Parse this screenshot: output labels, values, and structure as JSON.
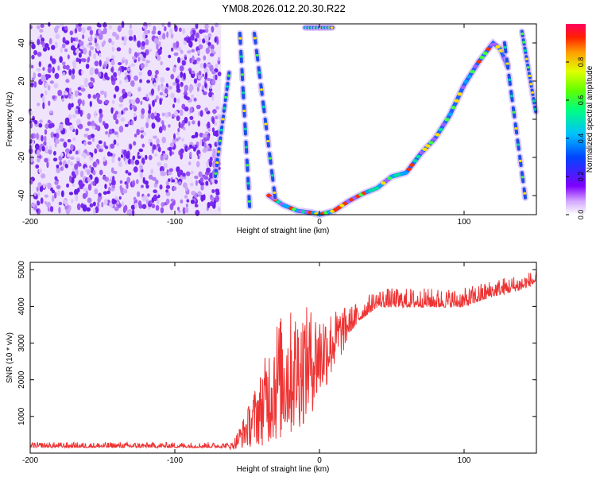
{
  "title": "YM08.2026.012.20.30.R22",
  "chart_data": [
    {
      "type": "heatmap",
      "name": "spectrogram",
      "xlabel": "Height of straight line (km)",
      "ylabel": "Frequency (Hz)",
      "xlim": [
        -200,
        150
      ],
      "ylim": [
        -50,
        50
      ],
      "xticks": [
        -200,
        -100,
        0,
        100
      ],
      "yticks": [
        -40,
        -20,
        0,
        20,
        40
      ],
      "colorbar": {
        "label": "Normalized spectral amplitude",
        "range": [
          0,
          1
        ],
        "ticks": [
          0.0,
          0.2,
          0.4,
          0.6,
          0.8
        ],
        "tick_labels": [
          "0.0",
          "0.2",
          "0.4",
          "0.6",
          "0.8"
        ]
      },
      "noise_region": {
        "x_from": -200,
        "x_to": -68
      },
      "main_trace": {
        "x": [
          -35,
          -25,
          -15,
          -5,
          0,
          10,
          20,
          30,
          40,
          50,
          60,
          70,
          80,
          90,
          100,
          110,
          115,
          120,
          125,
          130
        ],
        "y": [
          -40,
          -45,
          -48,
          -49,
          -50,
          -48,
          -43,
          -39,
          -36,
          -30,
          -28,
          -18,
          -10,
          2,
          18,
          30,
          35,
          40,
          37,
          28
        ]
      },
      "aliased_traces": [
        {
          "x": [
            -72,
            -62
          ],
          "y": [
            -30,
            27
          ]
        },
        {
          "x": [
            -55,
            -48
          ],
          "y": [
            45,
            -50
          ]
        },
        {
          "x": [
            -45,
            -30
          ],
          "y": [
            45,
            -45
          ]
        },
        {
          "x": [
            -10,
            10
          ],
          "y": [
            48,
            48
          ]
        },
        {
          "x": [
            128,
            143
          ],
          "y": [
            40,
            -45
          ]
        },
        {
          "x": [
            140,
            150
          ],
          "y": [
            46,
            2
          ]
        }
      ]
    },
    {
      "type": "line",
      "name": "snr",
      "xlabel": "Height of straight line (km)",
      "ylabel": "SNR (10 * v/v)",
      "xlim": [
        -200,
        150
      ],
      "ylim": [
        0,
        5200
      ],
      "xticks": [
        -200,
        -100,
        0,
        100
      ],
      "yticks": [
        1000,
        2000,
        3000,
        4000,
        5000
      ],
      "color": "#ee3333",
      "envelope": {
        "x": [
          -200,
          -60,
          -50,
          -40,
          -30,
          -20,
          -10,
          0,
          10,
          20,
          30,
          40,
          60,
          80,
          100,
          120,
          140,
          150
        ],
        "y_low": [
          100,
          100,
          150,
          200,
          250,
          400,
          800,
          1400,
          2200,
          3000,
          3500,
          3800,
          3800,
          3800,
          3800,
          4100,
          4300,
          4500
        ],
        "y_high": [
          300,
          300,
          1200,
          2300,
          3700,
          3900,
          4000,
          3900,
          3900,
          4000,
          4200,
          4500,
          4500,
          4500,
          4500,
          4750,
          4900,
          5000
        ]
      }
    }
  ]
}
